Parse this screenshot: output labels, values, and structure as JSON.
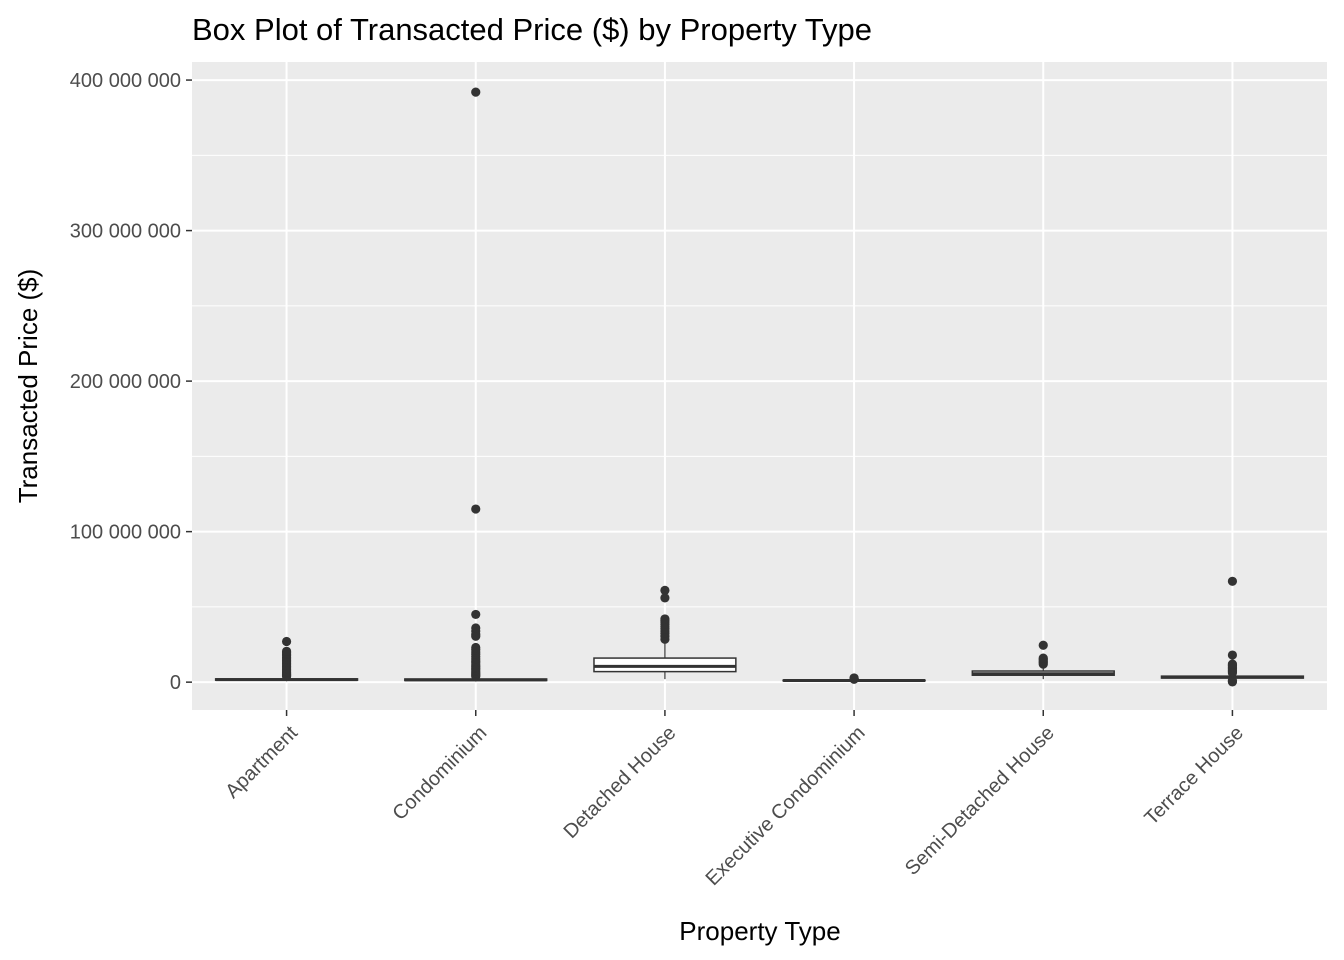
{
  "chart_data": {
    "type": "box",
    "title": "Box Plot of Transacted Price ($) by Property Type",
    "xlabel": "Property Type",
    "ylabel": "Transacted Price ($)",
    "ylim": [
      -18500000,
      412000000
    ],
    "y_ticks": [
      0,
      100000000,
      200000000,
      300000000,
      400000000
    ],
    "y_tick_labels": [
      "0",
      "100 000 000",
      "200 000 000",
      "300 000 000",
      "400 000 000"
    ],
    "grid": true,
    "colors": {
      "panel": "#ebebeb",
      "grid": "#ffffff",
      "box_stroke": "#333333",
      "box_fill": "#ffffff",
      "outlier": "#333333",
      "tick_label": "#4d4d4d"
    },
    "categories": [
      "Apartment",
      "Condominium",
      "Detached House",
      "Executive Condominium",
      "Semi-Detached House",
      "Terrace House"
    ],
    "boxes": [
      {
        "category": "Apartment",
        "whisker_low": 600000,
        "q1": 1300000,
        "median": 1700000,
        "q3": 2200000,
        "whisker_high": 3600000,
        "outliers": [
          3800000,
          4300000,
          5000000,
          5800000,
          6600000,
          7500000,
          8500000,
          9500000,
          10500000,
          11500000,
          12500000,
          13500000,
          14500000,
          15500000,
          16500000,
          17500000,
          18500000,
          19500000,
          20500000,
          27000000
        ]
      },
      {
        "category": "Condominium",
        "whisker_low": 400000,
        "q1": 1100000,
        "median": 1500000,
        "q3": 2100000,
        "whisker_high": 3600000,
        "outliers": [
          3800000,
          4500000,
          5300000,
          6200000,
          7200000,
          8200000,
          9200000,
          10300000,
          11500000,
          12800000,
          14000000,
          15500000,
          17000000,
          18500000,
          20000000,
          21500000,
          23000000,
          30500000,
          32000000,
          34000000,
          36000000,
          45000000,
          115000000,
          392000000
        ]
      },
      {
        "category": "Detached House",
        "whisker_low": 2000000,
        "q1": 7000000,
        "median": 10500000,
        "q3": 16000000,
        "whisker_high": 27000000,
        "outliers": [
          28500000,
          30500000,
          32500000,
          34000000,
          35500000,
          37000000,
          38500000,
          40000000,
          41000000,
          42000000,
          56000000,
          61000000
        ]
      },
      {
        "category": "Executive Condominium",
        "whisker_low": 300000,
        "q1": 900000,
        "median": 1100000,
        "q3": 1300000,
        "whisker_high": 1800000,
        "outliers": [
          1900000,
          2100000,
          2300000,
          2500000,
          2800000
        ]
      },
      {
        "category": "Semi-Detached House",
        "whisker_low": 2000000,
        "q1": 4600000,
        "median": 5600000,
        "q3": 7400000,
        "whisker_high": 11500000,
        "outliers": [
          12000000,
          13000000,
          14000000,
          15000000,
          16000000,
          24500000
        ]
      },
      {
        "category": "Terrace House",
        "whisker_low": 1300000,
        "q1": 2700000,
        "median": 3300000,
        "q3": 4000000,
        "whisker_high": 5800000,
        "outliers": [
          200000,
          600000,
          1000000,
          6200000,
          7000000,
          8000000,
          9000000,
          10000000,
          11000000,
          12000000,
          18000000,
          67000000
        ]
      }
    ]
  }
}
